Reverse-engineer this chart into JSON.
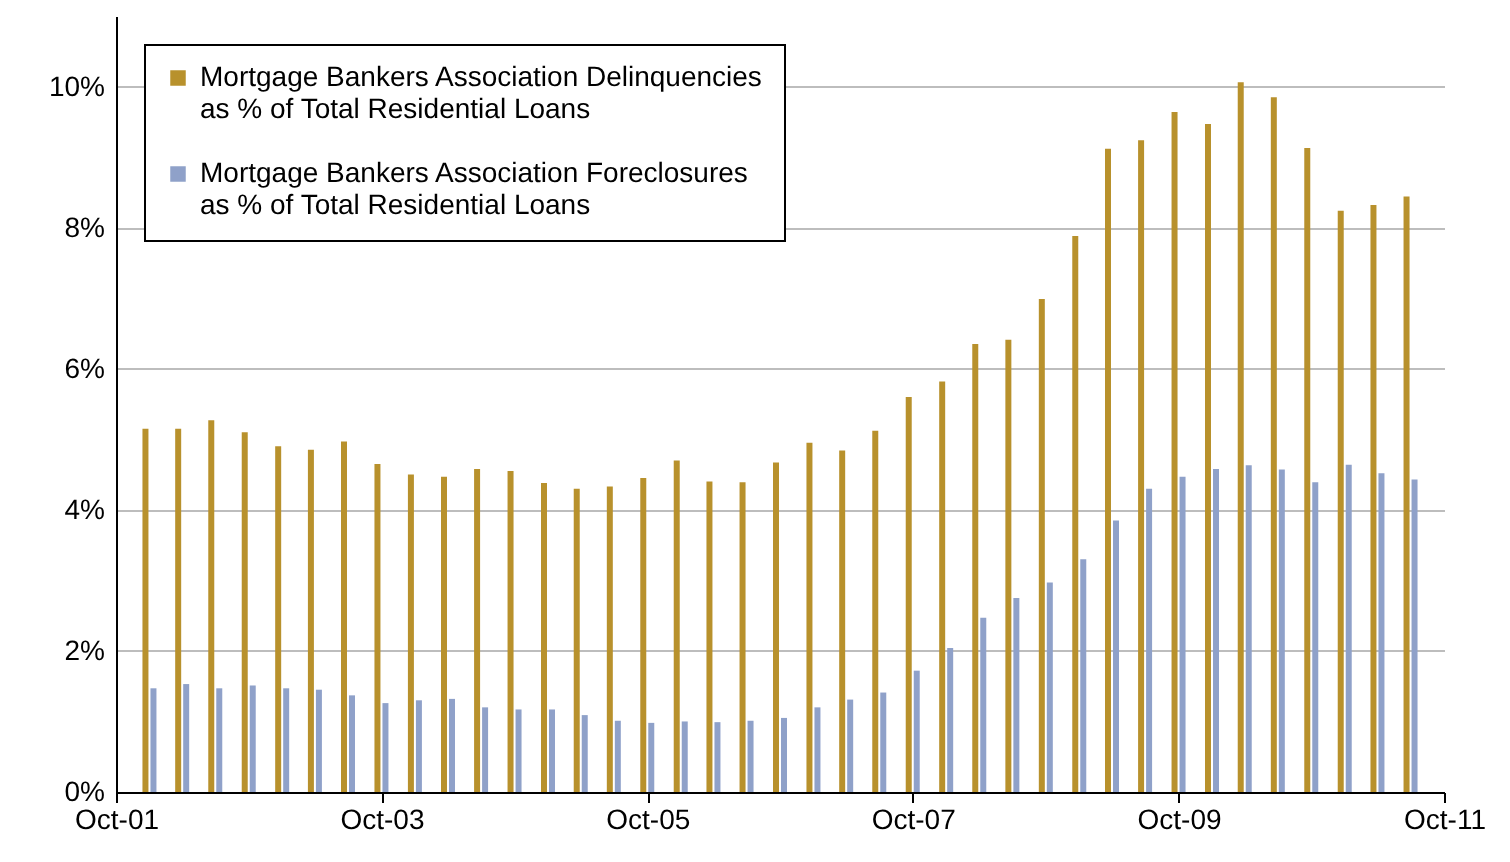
{
  "chart_data": {
    "type": "bar",
    "x": [
      "2002-01",
      "2002-04",
      "2002-07",
      "2002-10",
      "2003-01",
      "2003-04",
      "2003-07",
      "2003-10",
      "2004-01",
      "2004-04",
      "2004-07",
      "2004-10",
      "2005-01",
      "2005-04",
      "2005-07",
      "2005-10",
      "2006-01",
      "2006-04",
      "2006-07",
      "2006-10",
      "2007-01",
      "2007-04",
      "2007-07",
      "2007-10",
      "2008-01",
      "2008-04",
      "2008-07",
      "2008-10",
      "2009-01",
      "2009-04",
      "2009-07",
      "2009-10",
      "2010-01",
      "2010-04",
      "2010-07",
      "2010-10",
      "2011-01",
      "2011-04",
      "2011-07"
    ],
    "series": [
      {
        "name": "Mortgage Bankers Association Delinquencies\nas % of Total Residential Loans",
        "color": "#b8912c",
        "values": [
          5.15,
          5.15,
          5.27,
          5.1,
          4.9,
          4.85,
          4.97,
          4.65,
          4.5,
          4.47,
          4.58,
          4.55,
          4.38,
          4.3,
          4.33,
          4.45,
          4.7,
          4.4,
          4.39,
          4.67,
          4.95,
          4.84,
          5.12,
          5.6,
          5.82,
          6.35,
          6.41,
          6.99,
          7.88,
          9.12,
          9.24,
          9.64,
          9.47,
          10.06,
          9.85,
          9.13,
          8.24,
          8.32,
          8.44
        ]
      },
      {
        "name": "Mortgage Bankers Association Foreclosures\nas % of Total Residential Loans",
        "color": "#8fa1c9",
        "values": [
          1.47,
          1.53,
          1.47,
          1.51,
          1.47,
          1.45,
          1.37,
          1.26,
          1.3,
          1.32,
          1.2,
          1.17,
          1.17,
          1.09,
          1.01,
          0.98,
          1.0,
          0.99,
          1.01,
          1.05,
          1.2,
          1.31,
          1.41,
          1.72,
          2.04,
          2.47,
          2.75,
          2.97,
          3.3,
          3.85,
          4.3,
          4.47,
          4.58,
          4.63,
          4.57,
          4.39,
          4.64,
          4.52,
          4.43
        ]
      }
    ],
    "xlim": [
      "2001-10",
      "2011-10"
    ],
    "xticks": [
      {
        "value": "2001-10",
        "label": "Oct-01"
      },
      {
        "value": "2003-10",
        "label": "Oct-03"
      },
      {
        "value": "2005-10",
        "label": "Oct-05"
      },
      {
        "value": "2007-10",
        "label": "Oct-07"
      },
      {
        "value": "2009-10",
        "label": "Oct-09"
      },
      {
        "value": "2011-10",
        "label": "Oct-11"
      }
    ],
    "ylim": [
      0,
      11
    ],
    "yticks": [
      {
        "value": 0,
        "label": "0%"
      },
      {
        "value": 2,
        "label": "2%"
      },
      {
        "value": 4,
        "label": "4%"
      },
      {
        "value": 6,
        "label": "6%"
      },
      {
        "value": 8,
        "label": "8%"
      },
      {
        "value": 10,
        "label": "10%"
      }
    ],
    "grid": "y",
    "legend": "top left"
  }
}
